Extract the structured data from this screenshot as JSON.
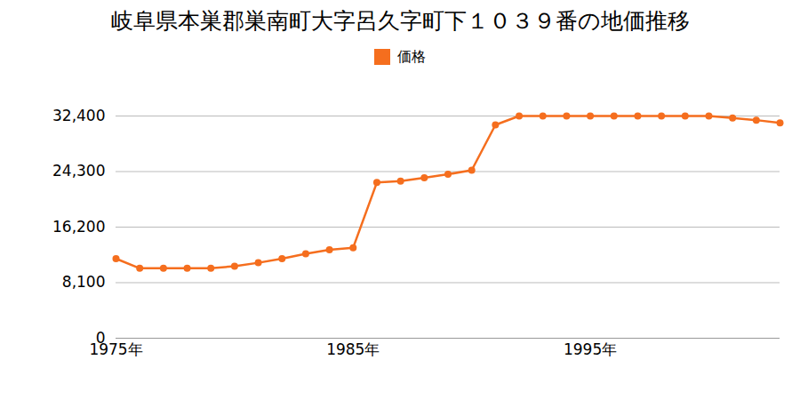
{
  "chart_data": {
    "type": "line",
    "title": "岐阜県本巣郡巣南町大字呂久字町下１０３９番の地価推移",
    "x": [
      1975,
      1976,
      1977,
      1978,
      1979,
      1980,
      1981,
      1982,
      1983,
      1984,
      1985,
      1986,
      1987,
      1988,
      1989,
      1990,
      1991,
      1992,
      1993,
      1994,
      1995,
      1996,
      1997,
      1998,
      1999,
      2000,
      2001,
      2002,
      2003
    ],
    "series": [
      {
        "name": "価格",
        "color": "#f56e1e",
        "marker": "circle",
        "values": [
          11600,
          10200,
          10200,
          10200,
          10200,
          10500,
          11000,
          11600,
          12300,
          12900,
          13200,
          22700,
          22900,
          23400,
          23900,
          24500,
          31100,
          32400,
          32400,
          32400,
          32400,
          32400,
          32400,
          32400,
          32400,
          32400,
          32100,
          31800,
          31400
        ]
      }
    ],
    "xlim": [
      1975,
      2003
    ],
    "xticks": [
      {
        "value": 1975,
        "label": "1975年"
      },
      {
        "value": 1985,
        "label": "1985年"
      },
      {
        "value": 1995,
        "label": "1995年"
      }
    ],
    "ylim": [
      0,
      32400
    ],
    "yticks": [
      0,
      {
        "value": 8100,
        "label": "8,100"
      },
      {
        "value": 16200,
        "label": "16,200"
      },
      {
        "value": 24300,
        "label": "24,300"
      },
      {
        "value": 32400,
        "label": "32,400"
      }
    ],
    "grid": true,
    "legend": "top"
  }
}
